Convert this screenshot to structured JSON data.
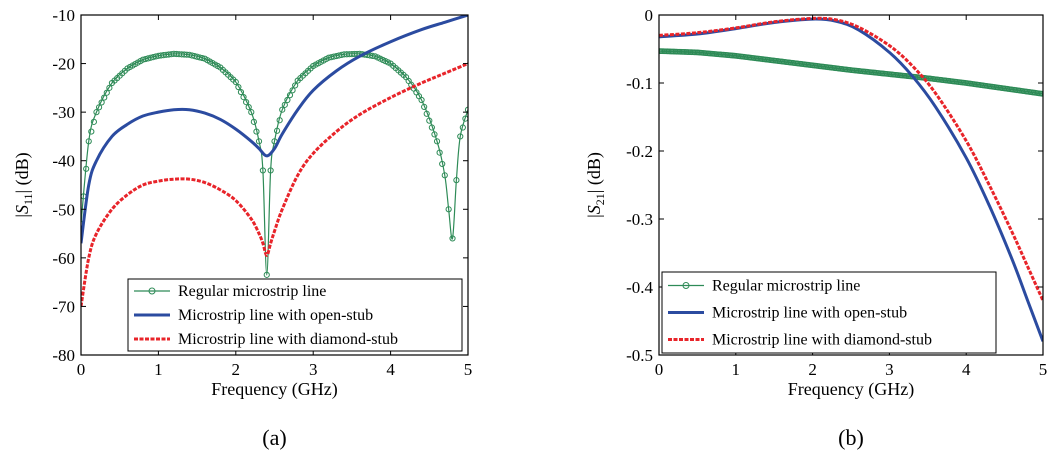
{
  "chart_data": [
    {
      "type": "line",
      "caption": "(a)",
      "xlabel": "Frequency (GHz)",
      "ylabel_prefix": "|",
      "ylabel_symbol": "S",
      "ylabel_subscript": "11",
      "ylabel_suffix": "| (dB)",
      "xlim": [
        0,
        5
      ],
      "ylim": [
        -80,
        -10
      ],
      "xticks": [
        0,
        1,
        2,
        3,
        4,
        5
      ],
      "yticks": [
        -80,
        -70,
        -60,
        -50,
        -40,
        -30,
        -20,
        -10
      ],
      "xtick_labels": [
        "0",
        "1",
        "2",
        "3",
        "4",
        "5"
      ],
      "ytick_labels": [
        "-80",
        "-70",
        "-60",
        "-50",
        "-40",
        "-30",
        "-20",
        "-10"
      ],
      "grid": false,
      "legend": "bottom-right",
      "series": [
        {
          "name": "Regular microstrip line",
          "color": "#2e8b57",
          "marker": "circle",
          "x": [
            0,
            0.1,
            0.2,
            0.4,
            0.6,
            0.8,
            1.0,
            1.2,
            1.4,
            1.6,
            1.8,
            2.0,
            2.2,
            2.3,
            2.35,
            2.4,
            2.45,
            2.5,
            2.6,
            2.8,
            3.0,
            3.2,
            3.4,
            3.6,
            3.8,
            4.0,
            4.2,
            4.4,
            4.6,
            4.7,
            4.75,
            4.8,
            4.85,
            4.9,
            5.0
          ],
          "y": [
            -53,
            -36,
            -30,
            -24,
            -21,
            -19.2,
            -18.4,
            -18,
            -18.2,
            -19,
            -20.8,
            -23.8,
            -30,
            -36,
            -42,
            -63.5,
            -42,
            -36,
            -29.5,
            -23.5,
            -20.5,
            -18.8,
            -18.1,
            -18,
            -18.5,
            -20,
            -22.8,
            -27.5,
            -36,
            -43,
            -50,
            -56,
            -44,
            -35,
            -29.5
          ]
        },
        {
          "name": "Microstrip line with open-stub",
          "color": "#2b4ba0",
          "marker": "none",
          "x": [
            0,
            0.1,
            0.2,
            0.4,
            0.6,
            0.8,
            1.0,
            1.2,
            1.4,
            1.6,
            1.8,
            2.0,
            2.2,
            2.3,
            2.4,
            2.5,
            2.6,
            2.8,
            3.0,
            3.3,
            3.6,
            4.0,
            4.4,
            4.7,
            5.0
          ],
          "y": [
            -57,
            -45,
            -40,
            -35,
            -32.5,
            -30.8,
            -30,
            -29.5,
            -29.5,
            -30.2,
            -31.5,
            -33.5,
            -36,
            -37.5,
            -39,
            -37.5,
            -34.5,
            -29.5,
            -25.5,
            -21.5,
            -18.5,
            -15.5,
            -13,
            -11.5,
            -10
          ]
        },
        {
          "name": "Microstrip line with diamond-stub",
          "color": "#e8242a",
          "marker": "none",
          "x": [
            0,
            0.1,
            0.2,
            0.4,
            0.6,
            0.8,
            1.0,
            1.2,
            1.4,
            1.6,
            1.8,
            2.0,
            2.2,
            2.3,
            2.35,
            2.4,
            2.45,
            2.5,
            2.6,
            2.8,
            3.0,
            3.3,
            3.6,
            4.0,
            4.4,
            4.7,
            5.0
          ],
          "y": [
            -70,
            -60,
            -55,
            -50,
            -47,
            -45,
            -44.2,
            -43.8,
            -43.8,
            -44.5,
            -46,
            -48.2,
            -52,
            -55,
            -57,
            -59.5,
            -57,
            -54.5,
            -50,
            -43,
            -38.5,
            -34,
            -30.5,
            -27,
            -24,
            -22,
            -20
          ]
        }
      ]
    },
    {
      "type": "line",
      "caption": "(b)",
      "xlabel": "Frequency (GHz)",
      "ylabel_prefix": "|",
      "ylabel_symbol": "S",
      "ylabel_subscript": "21",
      "ylabel_suffix": "| (dB)",
      "xlim": [
        0,
        5
      ],
      "ylim": [
        -0.5,
        0
      ],
      "xticks": [
        0,
        1,
        2,
        3,
        4,
        5
      ],
      "yticks": [
        -0.5,
        -0.4,
        -0.3,
        -0.2,
        -0.1,
        0
      ],
      "xtick_labels": [
        "0",
        "1",
        "2",
        "3",
        "4",
        "5"
      ],
      "ytick_labels": [
        "-0.5",
        "-0.4",
        "-0.3",
        "-0.2",
        "-0.1",
        "0"
      ],
      "grid": false,
      "legend": "bottom-left",
      "series": [
        {
          "name": "Regular microstrip line",
          "color": "#2e8b57",
          "marker": "circle",
          "x": [
            0,
            0.5,
            1.0,
            1.5,
            2.0,
            2.5,
            3.0,
            3.5,
            4.0,
            4.5,
            5.0
          ],
          "y": [
            -0.053,
            -0.055,
            -0.06,
            -0.067,
            -0.074,
            -0.081,
            -0.087,
            -0.093,
            -0.1,
            -0.108,
            -0.116
          ]
        },
        {
          "name": "Microstrip line with open-stub",
          "color": "#2b4ba0",
          "marker": "none",
          "x": [
            0,
            0.5,
            1.0,
            1.5,
            2.0,
            2.3,
            2.6,
            3.0,
            3.3,
            3.6,
            4.0,
            4.3,
            4.6,
            4.8,
            5.0
          ],
          "y": [
            -0.032,
            -0.028,
            -0.02,
            -0.011,
            -0.006,
            -0.009,
            -0.022,
            -0.055,
            -0.09,
            -0.135,
            -0.21,
            -0.28,
            -0.36,
            -0.42,
            -0.48
          ]
        },
        {
          "name": "Microstrip line with diamond-stub",
          "color": "#e8242a",
          "marker": "none",
          "x": [
            0,
            0.5,
            1.0,
            1.5,
            2.0,
            2.3,
            2.6,
            3.0,
            3.3,
            3.6,
            4.0,
            4.3,
            4.6,
            4.8,
            5.0
          ],
          "y": [
            -0.03,
            -0.026,
            -0.019,
            -0.01,
            -0.005,
            -0.007,
            -0.018,
            -0.045,
            -0.075,
            -0.115,
            -0.185,
            -0.25,
            -0.32,
            -0.37,
            -0.42
          ]
        }
      ]
    }
  ]
}
